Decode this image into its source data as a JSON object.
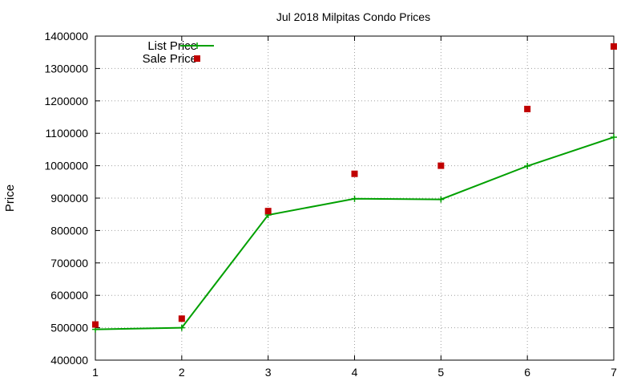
{
  "chart_data": {
    "type": "line",
    "title": "Jul 2018 Milpitas Condo Prices",
    "xlabel": "",
    "ylabel": "Price",
    "x": [
      1,
      2,
      3,
      4,
      5,
      6,
      7
    ],
    "xlim": [
      1,
      7
    ],
    "ylim": [
      400000,
      1400000
    ],
    "xticks": [
      "1",
      "2",
      "3",
      "4",
      "5",
      "6",
      "7"
    ],
    "yticks": [
      "400000",
      "500000",
      "600000",
      "700000",
      "800000",
      "900000",
      "1000000",
      "1100000",
      "1200000",
      "1300000",
      "1400000"
    ],
    "grid": true,
    "legend_position": "top-left",
    "series": [
      {
        "name": "List Price",
        "style": "line-with-plus-markers",
        "color": "#00a000",
        "values": [
          495000,
          500000,
          848000,
          898000,
          896000,
          999000,
          1088000
        ]
      },
      {
        "name": "Sale Price",
        "style": "square-markers",
        "color": "#c00000",
        "values": [
          510000,
          528000,
          860000,
          975000,
          1000000,
          1175000,
          1368000
        ]
      }
    ]
  }
}
